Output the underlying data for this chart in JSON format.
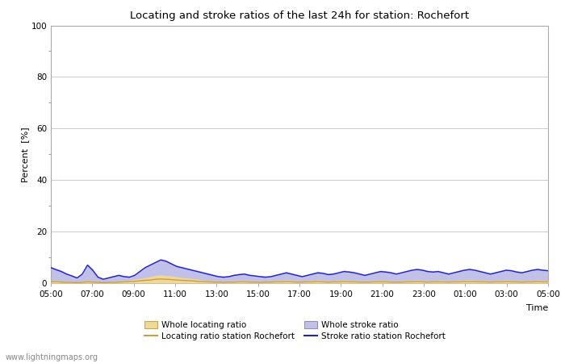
{
  "title": "Locating and stroke ratios of the last 24h for station: Rochefort",
  "xlabel": "Time",
  "ylabel": "Percent  [%]",
  "ylim": [
    0,
    100
  ],
  "yticks": [
    0,
    20,
    40,
    60,
    80,
    100
  ],
  "x_labels": [
    "05:00",
    "07:00",
    "09:00",
    "11:00",
    "13:00",
    "15:00",
    "17:00",
    "19:00",
    "21:00",
    "23:00",
    "01:00",
    "03:00",
    "05:00"
  ],
  "watermark": "www.lightningmaps.org",
  "whole_locating_color": "#f0d898",
  "whole_locating_edge": "#c8a850",
  "whole_stroke_color": "#c0c0e8",
  "whole_stroke_edge": "#9090c0",
  "locating_line_color": "#c8a040",
  "stroke_line_color": "#2020d0",
  "whole_locating": [
    1.0,
    1.2,
    0.8,
    0.7,
    0.6,
    0.5,
    0.7,
    1.0,
    0.8,
    0.6,
    0.5,
    0.6,
    0.7,
    0.8,
    1.0,
    1.2,
    1.5,
    1.8,
    2.2,
    2.5,
    3.0,
    3.2,
    3.0,
    2.8,
    2.5,
    2.2,
    2.0,
    1.8,
    1.5,
    1.2,
    1.0,
    0.9,
    0.8,
    0.7,
    0.8,
    0.9,
    1.0,
    1.0,
    0.9,
    0.8,
    0.7,
    0.8,
    0.9,
    1.0,
    1.1,
    1.2,
    1.0,
    0.9,
    0.8,
    1.0,
    1.1,
    1.2,
    1.0,
    0.9,
    1.0,
    1.1,
    1.2,
    1.1,
    1.0,
    0.9,
    0.8,
    0.9,
    1.0,
    1.1,
    1.0,
    0.9,
    0.8,
    0.9,
    1.0,
    1.1,
    1.2,
    1.0,
    0.9,
    1.0,
    1.1,
    1.0,
    0.9,
    1.0,
    1.1,
    1.2,
    1.3,
    1.2,
    1.1,
    1.0,
    0.9,
    1.0,
    1.1,
    1.2,
    1.1,
    1.0,
    0.9,
    1.0,
    1.1,
    1.2,
    1.1,
    1.0
  ],
  "whole_stroke": [
    6.5,
    5.8,
    5.0,
    4.0,
    3.2,
    2.5,
    4.0,
    7.5,
    5.5,
    2.8,
    2.0,
    2.5,
    3.0,
    3.5,
    3.0,
    2.8,
    3.5,
    5.0,
    6.5,
    7.5,
    8.5,
    9.5,
    9.0,
    8.0,
    7.0,
    6.5,
    6.0,
    5.5,
    5.0,
    4.5,
    4.0,
    3.5,
    3.0,
    2.8,
    3.0,
    3.5,
    3.8,
    4.0,
    3.5,
    3.2,
    3.0,
    2.8,
    3.0,
    3.5,
    4.0,
    4.5,
    4.0,
    3.5,
    3.0,
    3.5,
    4.0,
    4.5,
    4.2,
    3.8,
    4.0,
    4.5,
    5.0,
    4.8,
    4.5,
    4.0,
    3.5,
    4.0,
    4.5,
    5.0,
    4.8,
    4.5,
    4.0,
    4.5,
    5.0,
    5.5,
    5.8,
    5.5,
    5.0,
    4.8,
    5.0,
    4.5,
    4.0,
    4.5,
    5.0,
    5.5,
    5.8,
    5.5,
    5.0,
    4.5,
    4.0,
    4.5,
    5.0,
    5.5,
    5.2,
    4.8,
    4.5,
    5.0,
    5.5,
    5.8,
    5.5,
    5.2
  ],
  "locating_station": [
    0.5,
    0.6,
    0.4,
    0.3,
    0.3,
    0.2,
    0.3,
    0.5,
    0.4,
    0.3,
    0.2,
    0.3,
    0.3,
    0.4,
    0.5,
    0.6,
    0.7,
    0.9,
    1.1,
    1.2,
    1.5,
    1.6,
    1.5,
    1.4,
    1.2,
    1.1,
    1.0,
    0.9,
    0.7,
    0.6,
    0.5,
    0.4,
    0.4,
    0.3,
    0.4,
    0.4,
    0.5,
    0.5,
    0.4,
    0.4,
    0.3,
    0.4,
    0.4,
    0.5,
    0.5,
    0.6,
    0.5,
    0.4,
    0.4,
    0.5,
    0.5,
    0.6,
    0.5,
    0.4,
    0.5,
    0.5,
    0.6,
    0.5,
    0.5,
    0.4,
    0.4,
    0.4,
    0.5,
    0.5,
    0.5,
    0.4,
    0.4,
    0.4,
    0.5,
    0.5,
    0.6,
    0.5,
    0.4,
    0.5,
    0.5,
    0.5,
    0.4,
    0.5,
    0.5,
    0.6,
    0.6,
    0.6,
    0.5,
    0.5,
    0.4,
    0.5,
    0.5,
    0.6,
    0.5,
    0.5,
    0.4,
    0.5,
    0.5,
    0.6,
    0.5,
    0.5
  ],
  "stroke_station": [
    6.0,
    5.2,
    4.5,
    3.5,
    2.8,
    2.0,
    3.5,
    7.0,
    5.0,
    2.3,
    1.5,
    2.0,
    2.5,
    3.0,
    2.5,
    2.3,
    3.0,
    4.5,
    6.0,
    7.0,
    8.0,
    9.0,
    8.5,
    7.5,
    6.5,
    6.0,
    5.5,
    5.0,
    4.5,
    4.0,
    3.5,
    3.0,
    2.5,
    2.3,
    2.5,
    3.0,
    3.3,
    3.5,
    3.0,
    2.8,
    2.5,
    2.3,
    2.5,
    3.0,
    3.5,
    4.0,
    3.5,
    3.0,
    2.5,
    3.0,
    3.5,
    4.0,
    3.8,
    3.3,
    3.5,
    4.0,
    4.5,
    4.3,
    4.0,
    3.5,
    3.0,
    3.5,
    4.0,
    4.5,
    4.3,
    4.0,
    3.5,
    4.0,
    4.5,
    5.0,
    5.3,
    5.0,
    4.5,
    4.3,
    4.5,
    4.0,
    3.5,
    4.0,
    4.5,
    5.0,
    5.3,
    5.0,
    4.5,
    4.0,
    3.5,
    4.0,
    4.5,
    5.0,
    4.8,
    4.3,
    4.0,
    4.5,
    5.0,
    5.3,
    5.0,
    4.8
  ]
}
